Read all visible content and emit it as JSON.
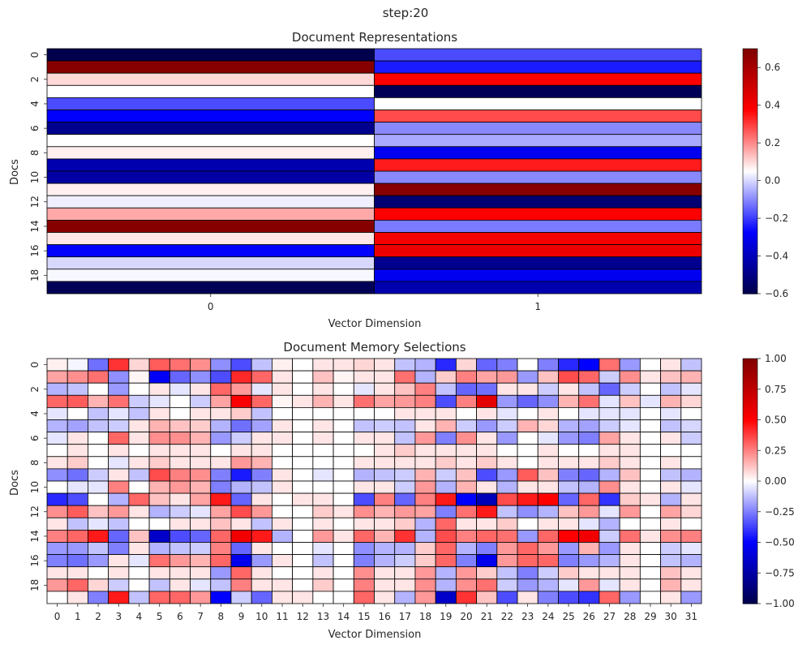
{
  "suptitle": "step:20",
  "chart_data": [
    {
      "type": "heatmap",
      "title": "Document Representations",
      "xlabel": "Vector Dimension",
      "ylabel": "Docs",
      "x_tick_labels": [
        "0",
        "1"
      ],
      "y_tick_labels": [
        "0",
        "2",
        "4",
        "6",
        "8",
        "10",
        "12",
        "14",
        "16",
        "18"
      ],
      "rows": 20,
      "cols": 2,
      "colormap": "seismic",
      "vmin": -0.6,
      "vmax": 0.7,
      "colorbar_ticks": [
        -0.6,
        -0.4,
        -0.2,
        0.0,
        0.2,
        0.4,
        0.6
      ],
      "colorbar_tick_labels": [
        "−0.6",
        "−0.4",
        "−0.2",
        "0.0",
        "0.2",
        "0.4",
        "0.6"
      ],
      "values": [
        [
          -0.6,
          -0.18
        ],
        [
          0.68,
          -0.24
        ],
        [
          0.1,
          0.38
        ],
        [
          0.05,
          -0.58
        ],
        [
          -0.18,
          0.05
        ],
        [
          -0.28,
          0.28
        ],
        [
          -0.48,
          -0.1
        ],
        [
          0.05,
          -0.06
        ],
        [
          0.07,
          -0.3
        ],
        [
          -0.42,
          0.34
        ],
        [
          -0.44,
          -0.1
        ],
        [
          0.07,
          0.68
        ],
        [
          0.03,
          -0.53
        ],
        [
          0.16,
          0.38
        ],
        [
          0.68,
          -0.12
        ],
        [
          0.08,
          0.4
        ],
        [
          -0.28,
          0.42
        ],
        [
          0.0,
          -0.48
        ],
        [
          0.04,
          -0.3
        ],
        [
          -0.58,
          -0.42
        ]
      ]
    },
    {
      "type": "heatmap",
      "title": "Document Memory Selections",
      "xlabel": "Vector Dimension",
      "ylabel": "Docs",
      "x_tick_labels": [
        "0",
        "1",
        "2",
        "3",
        "4",
        "5",
        "6",
        "7",
        "8",
        "9",
        "10",
        "11",
        "12",
        "13",
        "14",
        "15",
        "16",
        "17",
        "18",
        "19",
        "20",
        "21",
        "22",
        "23",
        "24",
        "25",
        "26",
        "27",
        "28",
        "29",
        "30",
        "31"
      ],
      "y_tick_labels": [
        "0",
        "2",
        "4",
        "6",
        "8",
        "10",
        "12",
        "14",
        "16",
        "18"
      ],
      "rows": 20,
      "cols": 32,
      "colormap": "seismic",
      "vmin": -1.0,
      "vmax": 1.0,
      "colorbar_ticks": [
        -1.0,
        -0.75,
        -0.5,
        -0.25,
        0.0,
        0.25,
        0.5,
        0.75,
        1.0
      ],
      "colorbar_tick_labels": [
        "−1.00",
        "−0.75",
        "−0.50",
        "−0.25",
        "0.00",
        "0.25",
        "0.50",
        "0.75",
        "1.00"
      ],
      "values": [
        [
          0.03,
          -0.02,
          -0.28,
          0.4,
          0.08,
          0.32,
          0.28,
          0.22,
          -0.22,
          -0.35,
          -0.12,
          0.03,
          0.0,
          0.05,
          0.05,
          0.08,
          0.05,
          -0.12,
          -0.15,
          -0.42,
          0.08,
          -0.3,
          -0.25,
          0.0,
          -0.25,
          -0.42,
          -0.5,
          0.28,
          -0.2,
          0.0,
          0.05,
          -0.12
        ],
        [
          0.18,
          0.22,
          0.28,
          -0.22,
          0.02,
          -0.52,
          -0.3,
          -0.22,
          -0.35,
          0.42,
          0.3,
          0.05,
          0.0,
          0.12,
          0.02,
          0.05,
          0.05,
          0.28,
          -0.15,
          0.1,
          0.25,
          0.18,
          0.2,
          -0.2,
          0.12,
          0.35,
          0.3,
          -0.1,
          0.22,
          0.05,
          0.12,
          0.15
        ],
        [
          -0.15,
          -0.12,
          0.0,
          -0.2,
          0.0,
          0.05,
          -0.05,
          0.05,
          0.3,
          0.2,
          -0.05,
          0.05,
          0.0,
          0.05,
          0.0,
          -0.05,
          0.05,
          0.12,
          0.25,
          -0.12,
          -0.3,
          -0.28,
          0.05,
          0.05,
          -0.1,
          0.05,
          -0.12,
          -0.3,
          -0.1,
          0.0,
          -0.12,
          -0.05
        ],
        [
          0.3,
          0.32,
          0.15,
          0.28,
          -0.1,
          -0.05,
          0.0,
          -0.1,
          0.18,
          0.52,
          0.3,
          0.02,
          0.05,
          0.15,
          0.05,
          0.28,
          0.18,
          0.2,
          0.25,
          -0.35,
          0.25,
          0.6,
          -0.2,
          -0.3,
          -0.22,
          0.15,
          0.28,
          -0.05,
          0.12,
          -0.05,
          0.15,
          0.08
        ],
        [
          -0.05,
          0.0,
          -0.12,
          -0.05,
          -0.12,
          0.05,
          0.0,
          0.05,
          0.05,
          0.1,
          -0.12,
          0.0,
          0.0,
          0.0,
          0.0,
          0.0,
          0.0,
          0.05,
          0.05,
          0.05,
          0.0,
          0.05,
          -0.05,
          0.0,
          0.05,
          0.0,
          -0.05,
          -0.05,
          -0.05,
          0.0,
          -0.05,
          0.0
        ],
        [
          -0.15,
          -0.18,
          -0.12,
          -0.1,
          0.05,
          0.15,
          0.12,
          0.1,
          -0.15,
          -0.28,
          -0.18,
          0.05,
          0.0,
          0.05,
          0.0,
          -0.12,
          -0.1,
          -0.12,
          0.05,
          0.15,
          -0.1,
          -0.2,
          -0.1,
          0.15,
          0.08,
          -0.15,
          -0.18,
          -0.1,
          -0.05,
          0.0,
          -0.12,
          -0.08
        ],
        [
          -0.05,
          0.05,
          0.0,
          0.3,
          0.05,
          0.22,
          0.22,
          0.15,
          -0.2,
          -0.1,
          0.05,
          0.05,
          0.0,
          0.05,
          0.0,
          0.05,
          0.05,
          -0.12,
          0.2,
          -0.25,
          0.22,
          0.05,
          -0.2,
          0.0,
          -0.05,
          -0.2,
          -0.25,
          0.18,
          0.05,
          0.0,
          0.05,
          -0.1
        ],
        [
          0.0,
          0.05,
          0.0,
          0.05,
          0.0,
          0.05,
          0.05,
          0.05,
          0.0,
          0.05,
          0.05,
          0.0,
          0.0,
          0.0,
          0.0,
          0.0,
          0.05,
          0.1,
          0.05,
          0.05,
          0.05,
          0.05,
          0.0,
          0.0,
          0.05,
          0.0,
          0.0,
          0.05,
          0.05,
          0.0,
          0.0,
          0.0
        ],
        [
          0.05,
          0.1,
          0.0,
          -0.05,
          0.05,
          0.1,
          0.05,
          0.05,
          0.05,
          0.2,
          0.15,
          0.0,
          0.0,
          0.0,
          0.0,
          0.05,
          0.05,
          0.05,
          0.05,
          0.1,
          0.05,
          0.1,
          0.05,
          0.0,
          0.05,
          0.05,
          0.05,
          0.1,
          0.05,
          0.0,
          0.05,
          0.0
        ],
        [
          -0.22,
          -0.28,
          -0.1,
          0.05,
          -0.12,
          0.35,
          0.25,
          0.22,
          -0.25,
          -0.45,
          -0.25,
          0.05,
          0.0,
          -0.05,
          0.0,
          -0.15,
          -0.12,
          -0.1,
          0.15,
          -0.1,
          0.12,
          -0.35,
          -0.2,
          0.32,
          0.12,
          -0.25,
          -0.3,
          -0.15,
          0.12,
          0.0,
          -0.12,
          -0.15
        ],
        [
          0.0,
          -0.05,
          -0.05,
          0.25,
          0.0,
          0.15,
          0.2,
          0.15,
          -0.25,
          -0.15,
          -0.12,
          0.05,
          0.0,
          0.0,
          0.0,
          0.05,
          0.05,
          -0.1,
          0.2,
          -0.15,
          0.15,
          0.05,
          -0.15,
          0.05,
          0.05,
          -0.12,
          -0.15,
          0.22,
          0.05,
          0.0,
          0.05,
          -0.05
        ],
        [
          -0.42,
          -0.35,
          0.0,
          -0.15,
          0.3,
          0.12,
          0.05,
          0.18,
          0.45,
          -0.3,
          0.05,
          0.0,
          0.05,
          0.05,
          0.0,
          -0.35,
          0.25,
          -0.3,
          0.25,
          0.45,
          -0.5,
          -0.7,
          0.35,
          0.45,
          0.5,
          -0.3,
          0.3,
          -0.4,
          0.1,
          0.05,
          -0.15,
          0.05
        ],
        [
          0.22,
          0.32,
          0.12,
          0.2,
          0.05,
          -0.15,
          -0.1,
          -0.05,
          0.18,
          0.35,
          0.2,
          0.0,
          0.0,
          0.1,
          0.05,
          0.22,
          0.15,
          0.2,
          0.18,
          -0.25,
          0.28,
          0.45,
          -0.12,
          -0.22,
          -0.15,
          0.12,
          0.2,
          -0.05,
          0.2,
          0.0,
          0.18,
          0.08
        ],
        [
          0.05,
          -0.12,
          -0.05,
          -0.12,
          0.0,
          0.0,
          0.05,
          0.05,
          0.12,
          0.05,
          -0.12,
          0.05,
          0.0,
          0.05,
          0.0,
          0.05,
          0.05,
          0.1,
          -0.15,
          0.3,
          0.05,
          0.05,
          0.1,
          0.0,
          0.05,
          0.05,
          -0.05,
          -0.15,
          0.0,
          0.0,
          0.05,
          0.0
        ],
        [
          0.25,
          0.3,
          0.45,
          -0.3,
          0.12,
          -0.65,
          -0.35,
          -0.3,
          0.3,
          0.55,
          0.45,
          -0.15,
          0.0,
          0.2,
          0.05,
          0.3,
          0.15,
          0.4,
          -0.15,
          0.35,
          0.25,
          0.3,
          0.28,
          -0.2,
          0.3,
          0.5,
          0.55,
          -0.1,
          0.28,
          0.05,
          0.22,
          0.25
        ],
        [
          -0.2,
          -0.2,
          -0.12,
          -0.25,
          0.05,
          -0.15,
          -0.12,
          -0.1,
          0.25,
          -0.3,
          0.05,
          0.0,
          0.0,
          -0.05,
          0.0,
          -0.22,
          -0.15,
          -0.15,
          0.1,
          0.3,
          -0.15,
          -0.25,
          0.2,
          0.3,
          0.2,
          -0.2,
          0.15,
          -0.2,
          0.05,
          0.0,
          -0.1,
          -0.05
        ],
        [
          -0.25,
          -0.28,
          -0.2,
          0.05,
          -0.05,
          0.28,
          0.2,
          0.15,
          0.3,
          -0.55,
          -0.2,
          0.05,
          0.0,
          -0.12,
          0.0,
          -0.25,
          -0.15,
          -0.1,
          0.1,
          0.3,
          -0.25,
          -0.55,
          0.2,
          0.3,
          0.3,
          -0.25,
          -0.2,
          -0.15,
          0.05,
          0.0,
          -0.12,
          -0.15
        ],
        [
          0.05,
          0.05,
          0.0,
          0.05,
          0.0,
          0.05,
          0.05,
          0.05,
          -0.2,
          0.3,
          0.05,
          0.0,
          0.0,
          0.05,
          0.0,
          0.22,
          0.05,
          0.05,
          0.2,
          -0.15,
          0.2,
          0.1,
          -0.12,
          -0.25,
          -0.1,
          0.1,
          0.05,
          0.05,
          0.05,
          0.0,
          0.12,
          0.05
        ],
        [
          0.2,
          0.3,
          0.08,
          -0.1,
          0.0,
          -0.12,
          0.05,
          -0.05,
          -0.12,
          0.25,
          0.05,
          0.05,
          0.0,
          0.1,
          0.0,
          0.25,
          0.05,
          0.05,
          0.22,
          -0.15,
          0.22,
          0.28,
          -0.1,
          -0.2,
          -0.15,
          -0.05,
          0.2,
          -0.05,
          0.05,
          0.0,
          0.15,
          0.05
        ],
        [
          0.0,
          0.05,
          -0.25,
          0.45,
          -0.12,
          0.3,
          0.3,
          0.2,
          -0.5,
          -0.1,
          -0.3,
          0.05,
          0.05,
          0.0,
          0.0,
          0.3,
          0.05,
          -0.15,
          0.2,
          -0.65,
          0.4,
          0.12,
          -0.35,
          0.05,
          -0.25,
          -0.35,
          -0.4,
          0.3,
          -0.2,
          0.0,
          0.05,
          -0.2
        ]
      ]
    }
  ]
}
